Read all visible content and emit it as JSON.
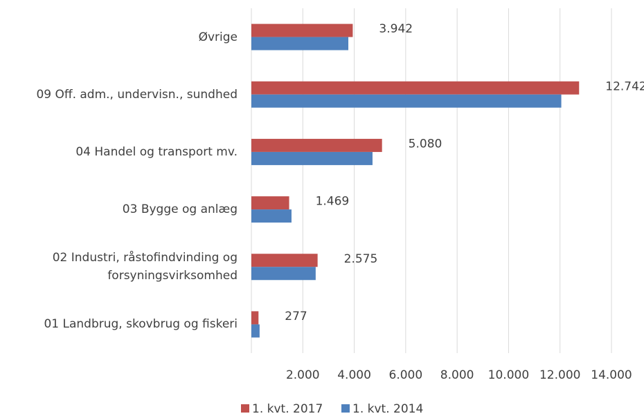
{
  "chart_data": {
    "type": "hbar",
    "categories": [
      "Øvrige",
      "09 Off. adm., undervisn., sundhed",
      "04 Handel og transport mv.",
      "03 Bygge og anlæg",
      "02 Industri, råstofindvinding og forsyningsvirksomhed",
      "01 Landbrug, skovbrug og fiskeri"
    ],
    "series": [
      {
        "name": "1. kvt. 2017",
        "color": "#c0504d",
        "values": [
          3942,
          12742,
          5080,
          1469,
          2575,
          277
        ],
        "value_labels": [
          "3.942",
          "12.742",
          "5.080",
          "1.469",
          "2.575",
          "277"
        ]
      },
      {
        "name": "1. kvt. 2014",
        "color": "#4f81bd",
        "values": [
          3770,
          12050,
          4710,
          1560,
          2500,
          320
        ]
      }
    ],
    "xlim": [
      0,
      14000
    ],
    "xticks": [
      {
        "value": 2000,
        "label": "2.000"
      },
      {
        "value": 4000,
        "label": "4.000"
      },
      {
        "value": 6000,
        "label": "6.000"
      },
      {
        "value": 8000,
        "label": "8.000"
      },
      {
        "value": 10000,
        "label": "10.000"
      },
      {
        "value": 12000,
        "label": "12.000"
      },
      {
        "value": 14000,
        "label": "14.000"
      }
    ],
    "grid": true
  }
}
